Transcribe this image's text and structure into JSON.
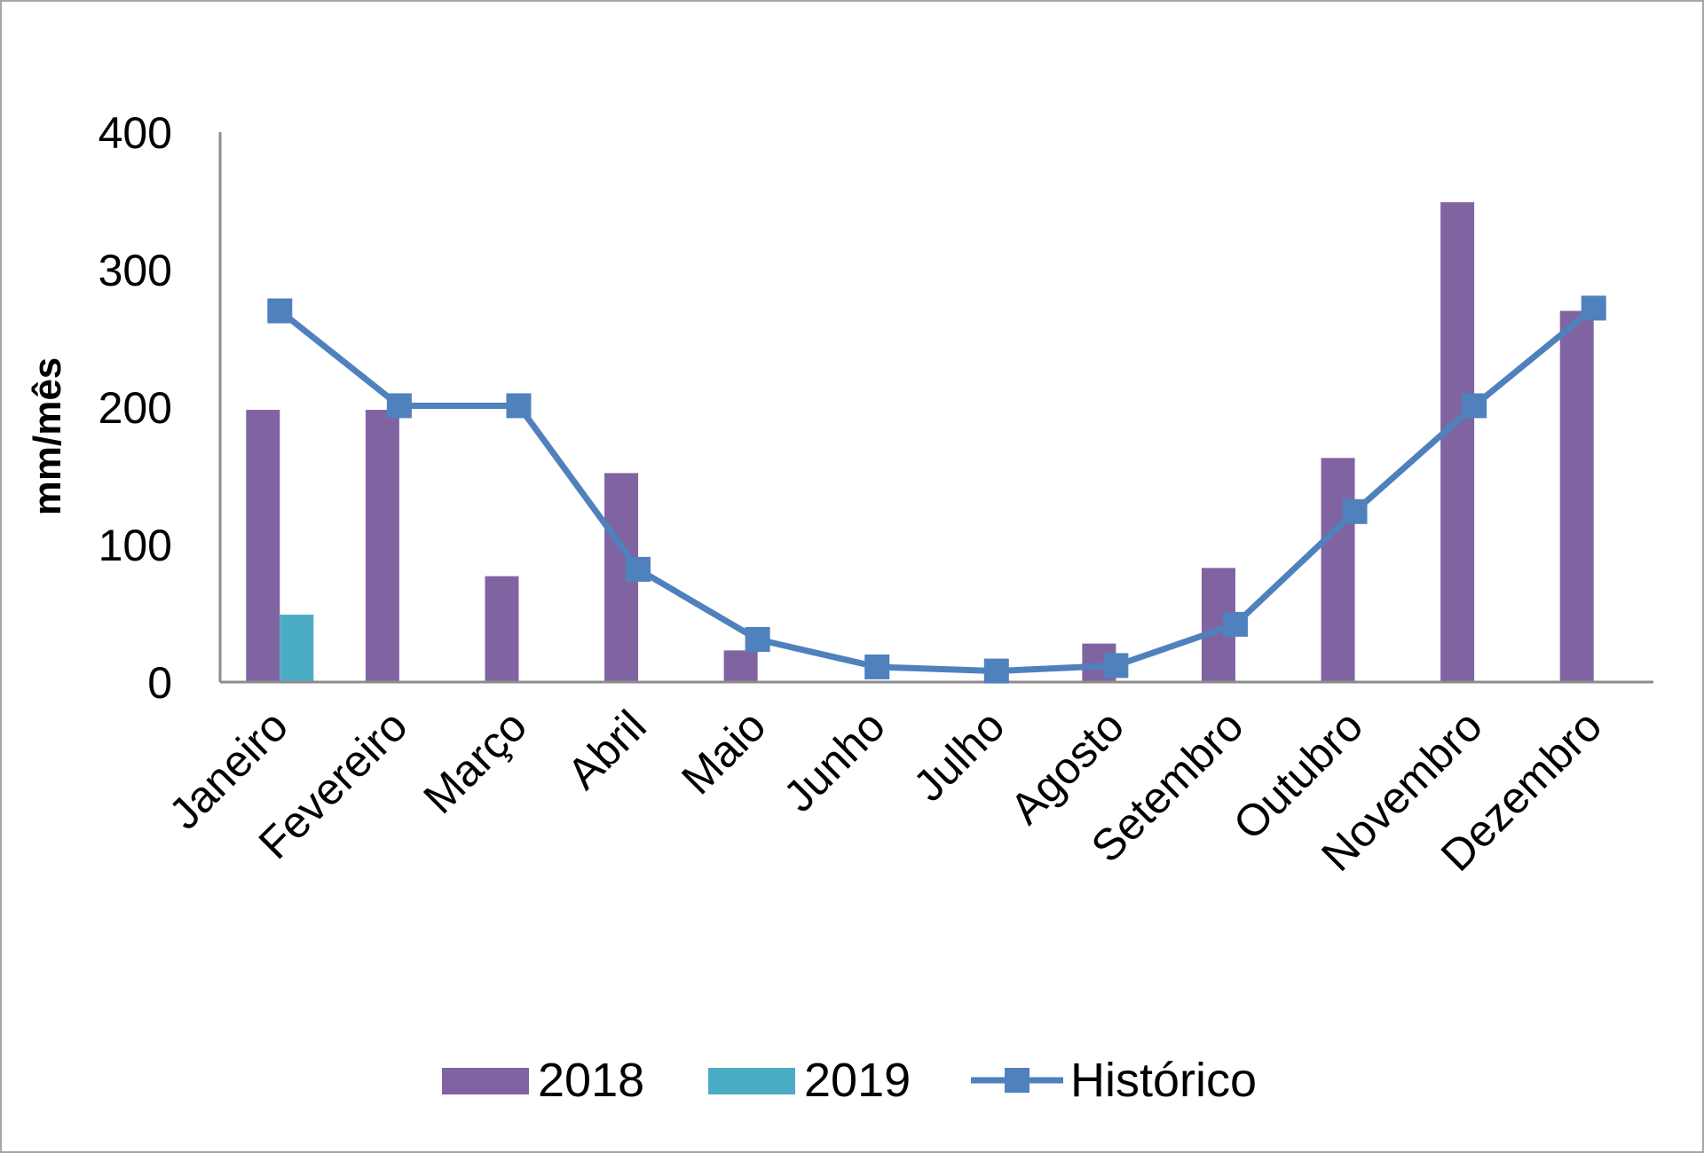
{
  "chart_data": {
    "type": "bar",
    "categories": [
      "Janeiro",
      "Fevereiro",
      "Março",
      "Abril",
      "Maio",
      "Junho",
      "Julho",
      "Agosto",
      "Setembro",
      "Outubro",
      "Novembro",
      "Dezembro"
    ],
    "series": [
      {
        "name": "2018",
        "kind": "bar",
        "color": "#8064a2",
        "values": [
          198,
          198,
          77,
          152,
          23,
          0,
          0,
          28,
          83,
          163,
          349,
          270
        ]
      },
      {
        "name": "2019",
        "kind": "bar",
        "color": "#4bacc6",
        "values": [
          49,
          null,
          null,
          null,
          null,
          null,
          null,
          null,
          null,
          null,
          null,
          null
        ]
      },
      {
        "name": "Histórico",
        "kind": "line",
        "marker": "square",
        "color": "#4f81bd",
        "values": [
          270,
          201,
          201,
          82,
          31,
          11,
          8,
          12,
          42,
          124,
          201,
          272
        ]
      }
    ],
    "ylabel": "mm/mês",
    "xlabel": "",
    "ylim": [
      0,
      400
    ],
    "yticks": [
      "0",
      "100",
      "200",
      "300",
      "400"
    ],
    "grid": false,
    "legend_position": "bottom"
  }
}
